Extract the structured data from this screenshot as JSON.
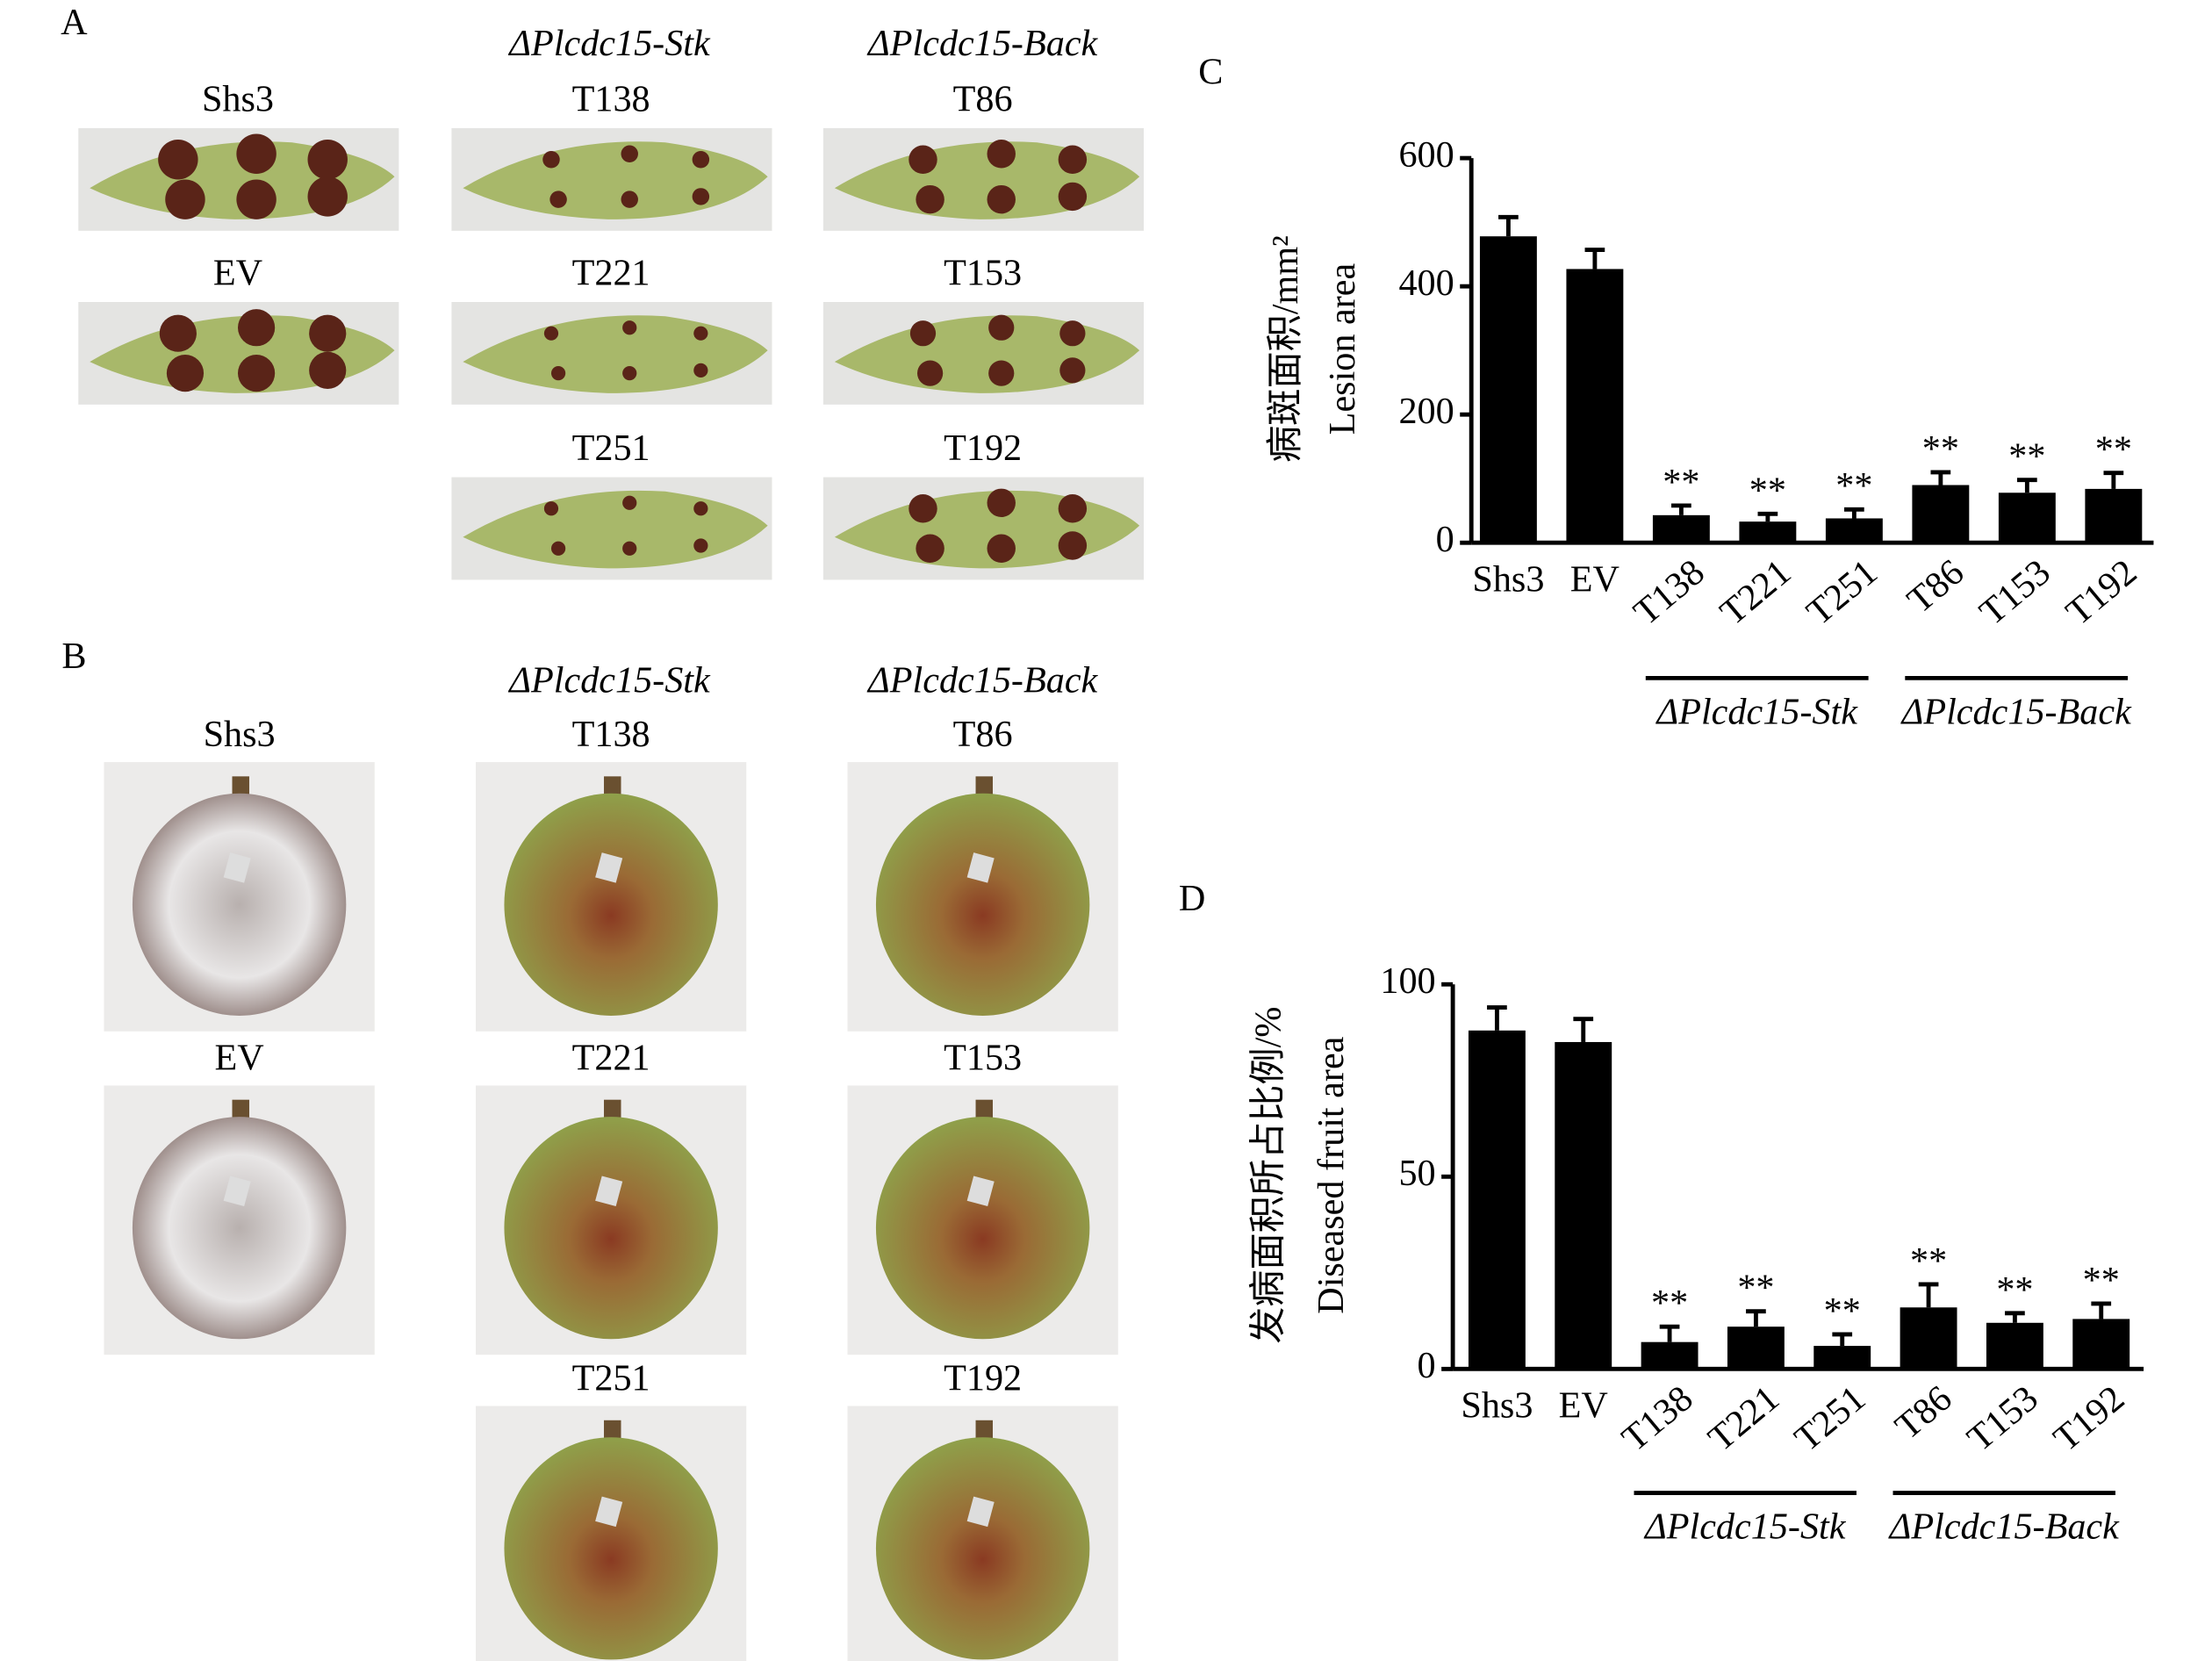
{
  "panel_a": {
    "label": "A",
    "groups": [
      "ΔPlcdc15-Stk",
      "ΔPlcdc15-Back"
    ],
    "photos": [
      "Shs3",
      "EV",
      "T138",
      "T221",
      "T251",
      "T86",
      "T153",
      "T192"
    ]
  },
  "panel_b": {
    "label": "B",
    "groups": [
      "ΔPlcdc15-Stk",
      "ΔPlcdc15-Back"
    ],
    "photos": [
      "Shs3",
      "EV",
      "T138",
      "T221",
      "T251",
      "T86",
      "T153",
      "T192"
    ]
  },
  "chart_data": [
    {
      "type": "bar",
      "panel": "C",
      "y_label": [
        "病斑面积/mm²",
        "Lesion area"
      ],
      "categories": [
        "Shs3",
        "EV",
        "T138",
        "T221",
        "T251",
        "T86",
        "T153",
        "T192"
      ],
      "values": [
        478,
        427,
        43,
        33,
        38,
        90,
        78,
        84
      ],
      "errors": [
        30,
        30,
        15,
        12,
        14,
        20,
        20,
        25
      ],
      "value_annotations": [
        null,
        null,
        "**",
        "**",
        "**",
        "**",
        "**",
        "**"
      ],
      "group_labels": [
        "ΔPlcdc15-Stk",
        "ΔPlcdc15-Back"
      ],
      "color": "#000000",
      "ylim": [
        0,
        600
      ],
      "yticks": [
        0,
        200,
        400,
        600
      ]
    },
    {
      "type": "bar",
      "panel": "D",
      "y_label": [
        "发病面积所占比例/%",
        "Diseased fruit area"
      ],
      "categories": [
        "Shs3",
        "EV",
        "T138",
        "T221",
        "T251",
        "T86",
        "T153",
        "T192"
      ],
      "values": [
        88,
        85,
        7,
        11,
        6,
        16,
        12,
        13
      ],
      "errors": [
        6,
        6,
        4,
        4,
        3,
        6,
        2.5,
        4
      ],
      "value_annotations": [
        null,
        null,
        "**",
        "**",
        "**",
        "**",
        "**",
        "**"
      ],
      "group_labels": [
        "ΔPlcdc15-Stk",
        "ΔPlcdc15-Back"
      ],
      "color": "#000000",
      "ylim": [
        0,
        100
      ],
      "yticks": [
        0,
        50,
        100
      ]
    }
  ]
}
